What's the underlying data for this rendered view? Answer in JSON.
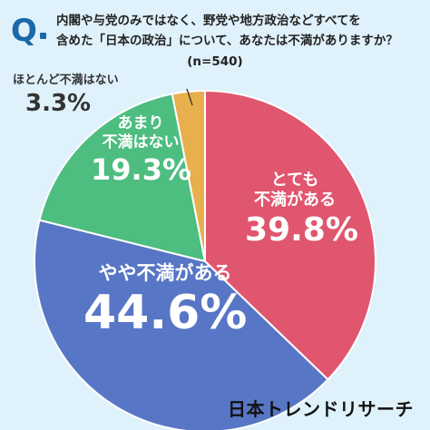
{
  "header": {
    "q_mark": "Q",
    "question_line1": "内閣や与党のみではなく、野党や地方政治などすべてを",
    "question_line2": "含めた「日本の政治」について、あなたは不満がありますか？",
    "sample": "(n=540)"
  },
  "chart_data": {
    "type": "pie",
    "categories": [
      "とても不満がある",
      "やや不満がある",
      "あまり不満はない",
      "ほとんど不満はない"
    ],
    "values": [
      39.8,
      44.6,
      19.3,
      3.3
    ],
    "labels": [
      {
        "line1": "とても",
        "line2": "不満がある",
        "pct": "39.8%"
      },
      {
        "line1": "やや不満がある",
        "line2": "",
        "pct": "44.6%"
      },
      {
        "line1": "あまり",
        "line2": "不満はない",
        "pct": "19.3%"
      },
      {
        "line1": "ほとんど不満はない",
        "line2": "",
        "pct": "3.3%"
      }
    ],
    "colors": [
      "#e0566f",
      "#5876c6",
      "#4dbd80",
      "#e7b04c"
    ],
    "start": "12 o'clock, clockwise"
  },
  "brand": "日本トレンドリサーチ"
}
